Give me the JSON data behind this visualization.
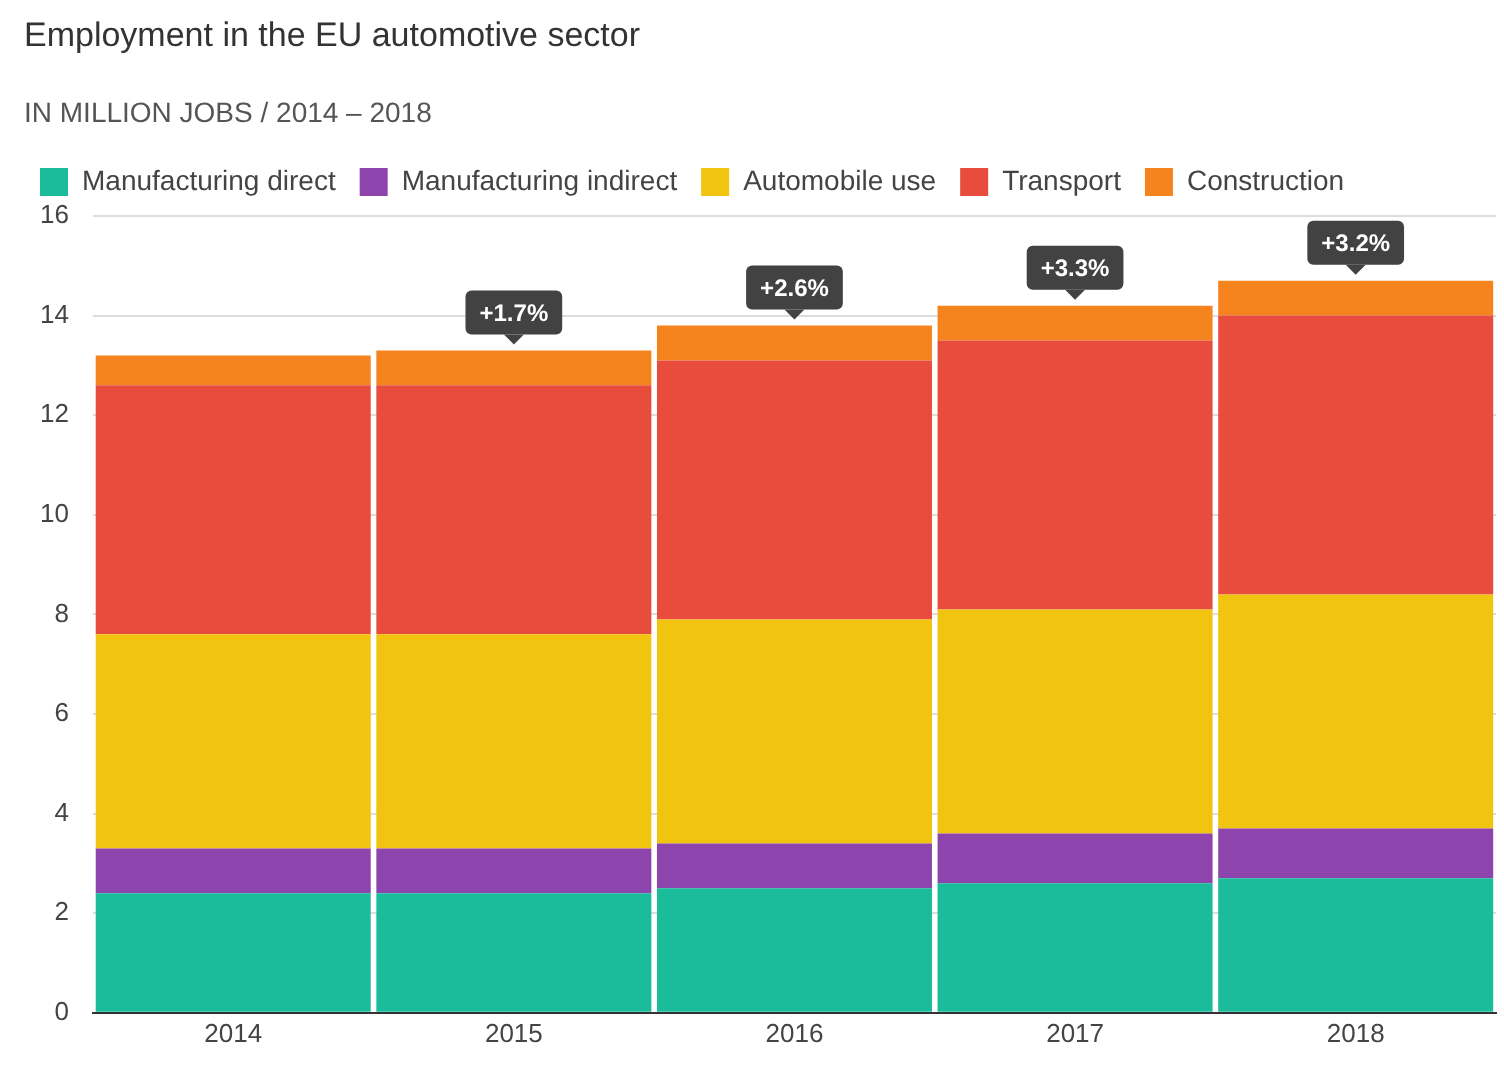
{
  "chart_data": {
    "type": "bar",
    "title": "Employment in the EU automotive sector",
    "subtitle": "IN MILLION JOBS / 2014 – 2018",
    "categories": [
      "2014",
      "2015",
      "2016",
      "2017",
      "2018"
    ],
    "series": [
      {
        "name": "Manufacturing direct",
        "color": "#1abc9c",
        "values": [
          2.4,
          2.4,
          2.5,
          2.6,
          2.7
        ]
      },
      {
        "name": "Manufacturing indirect",
        "color": "#8e44ad",
        "values": [
          0.9,
          0.9,
          0.9,
          1.0,
          1.0
        ]
      },
      {
        "name": "Automobile use",
        "color": "#f1c40f",
        "values": [
          4.3,
          4.3,
          4.5,
          4.5,
          4.7
        ]
      },
      {
        "name": "Transport",
        "color": "#e74c3c",
        "values": [
          5.0,
          5.0,
          5.2,
          5.4,
          5.6
        ]
      },
      {
        "name": "Construction",
        "color": "#f5841f",
        "values": [
          0.6,
          0.7,
          0.7,
          0.7,
          0.7
        ]
      }
    ],
    "stacked": true,
    "ylim": [
      0,
      16
    ],
    "yticks": [
      0,
      2,
      4,
      6,
      8,
      10,
      12,
      14,
      16
    ],
    "grid": "y",
    "legend": "top left",
    "annotations": [
      {
        "text": "+1.7%",
        "x": "2015",
        "y": 13.3
      },
      {
        "text": "+2.6%",
        "x": "2016",
        "y": 13.8
      },
      {
        "text": "+3.3%",
        "x": "2017",
        "y": 14.2
      },
      {
        "text": "+3.2%",
        "x": "2018",
        "y": 14.7
      }
    ]
  }
}
